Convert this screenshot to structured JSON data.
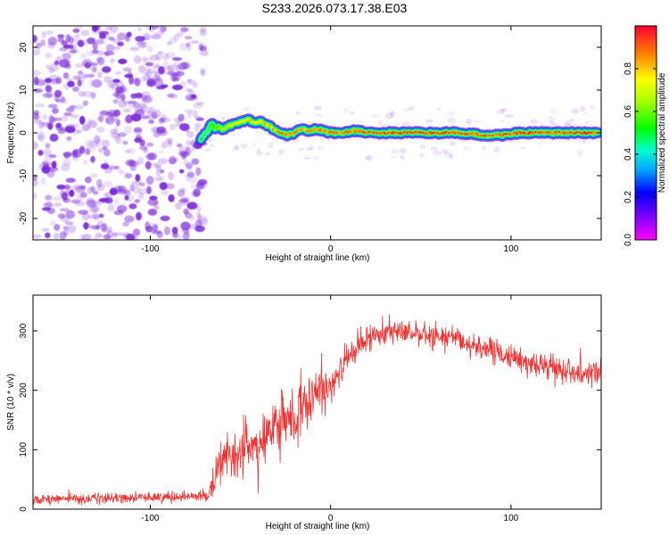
{
  "title": "S233.2026.073.17.38.E03",
  "colors": {
    "noise": "#7a2bd6",
    "snr_line": "#ee3333",
    "frame": "#000000"
  },
  "chart_data": [
    {
      "type": "heatmap",
      "name": "spectrogram",
      "xlabel": "Height of straight line (km)",
      "ylabel": "Frequency (Hz)",
      "xlim": [
        -165,
        150
      ],
      "ylim": [
        -25,
        25
      ],
      "xticks": [
        -100,
        0,
        100
      ],
      "yticks": [
        -20,
        -10,
        0,
        10,
        20
      ],
      "xtick_labels": [
        "-100",
        "0",
        "100"
      ],
      "ytick_labels": [
        "-20",
        "-10",
        "0",
        "10",
        "20"
      ],
      "noise_region_x": [
        -165,
        -70
      ],
      "colorbar": {
        "label": "Normalized spectral amplitude",
        "range": [
          0,
          1
        ],
        "ticks": [
          0.0,
          0.2,
          0.4,
          0.6,
          0.8
        ],
        "tick_labels": [
          "0.0",
          "0.2",
          "0.4",
          "0.6",
          "0.8"
        ]
      },
      "ridge": {
        "x": [
          -72,
          -70,
          -68,
          -66,
          -64,
          -62,
          -60,
          -57,
          -54,
          -50,
          -46,
          -42,
          -38,
          -34,
          -30,
          -27,
          -24,
          -20,
          -16,
          -12,
          -8,
          -4,
          0,
          5,
          10,
          15,
          20,
          25,
          30,
          40,
          50,
          60,
          70,
          80,
          85,
          90,
          95,
          100,
          105,
          110,
          115,
          120,
          130,
          140,
          148
        ],
        "freq": [
          -1.5,
          -0.5,
          0.5,
          2.5,
          1.0,
          1.5,
          0.8,
          1.5,
          2.0,
          2.5,
          3.0,
          2.5,
          2.5,
          1.5,
          0.5,
          0.0,
          -0.5,
          0.0,
          0.8,
          0.5,
          0.8,
          0.5,
          0.0,
          0.0,
          0.3,
          0.5,
          0.0,
          0.0,
          0.0,
          0.0,
          0.0,
          0.0,
          0.0,
          -0.3,
          -0.6,
          -0.6,
          -0.5,
          -0.2,
          0.0,
          0.0,
          0.0,
          0.0,
          0.0,
          0.0,
          0.0
        ],
        "amp": [
          0.4,
          0.5,
          0.45,
          0.55,
          0.6,
          0.65,
          0.7,
          0.72,
          0.75,
          0.78,
          0.82,
          0.85,
          0.85,
          0.88,
          0.9,
          0.92,
          0.93,
          0.92,
          0.9,
          0.9,
          0.92,
          0.94,
          0.95,
          0.95,
          0.96,
          0.96,
          0.97,
          0.97,
          0.98,
          0.98,
          0.98,
          0.98,
          0.98,
          0.97,
          0.96,
          0.96,
          0.97,
          0.97,
          0.98,
          0.98,
          0.98,
          0.98,
          0.98,
          0.98,
          0.98
        ]
      }
    },
    {
      "type": "line",
      "name": "snr",
      "xlabel": "Height of straight line (km)",
      "ylabel": "SNR (10 * v/v)",
      "xlim": [
        -165,
        150
      ],
      "ylim": [
        0,
        360
      ],
      "xticks": [
        -100,
        0,
        100
      ],
      "yticks": [
        0,
        100,
        200,
        300
      ],
      "xtick_labels": [
        "-100",
        "0",
        "100"
      ],
      "ytick_labels": [
        "0",
        "100",
        "200",
        "300"
      ],
      "envelope": {
        "x": [
          -165,
          -130,
          -100,
          -80,
          -68,
          -63,
          -60,
          -55,
          -50,
          -45,
          -40,
          -35,
          -30,
          -25,
          -20,
          -15,
          -10,
          -5,
          0,
          5,
          10,
          15,
          20,
          25,
          30,
          35,
          40,
          50,
          60,
          65,
          70,
          80,
          90,
          100,
          110,
          120,
          130,
          140,
          150
        ],
        "mean": [
          17,
          18,
          20,
          22,
          23,
          60,
          90,
          80,
          95,
          110,
          105,
          120,
          140,
          150,
          155,
          165,
          185,
          200,
          210,
          235,
          255,
          270,
          285,
          295,
          300,
          300,
          295,
          295,
          290,
          290,
          285,
          275,
          265,
          255,
          245,
          240,
          235,
          230,
          230
        ],
        "spread": [
          10,
          10,
          10,
          10,
          10,
          30,
          45,
          45,
          50,
          50,
          50,
          55,
          55,
          55,
          55,
          55,
          50,
          45,
          40,
          35,
          30,
          28,
          25,
          25,
          25,
          25,
          22,
          22,
          22,
          22,
          22,
          22,
          22,
          22,
          22,
          22,
          22,
          22,
          22
        ]
      }
    }
  ]
}
